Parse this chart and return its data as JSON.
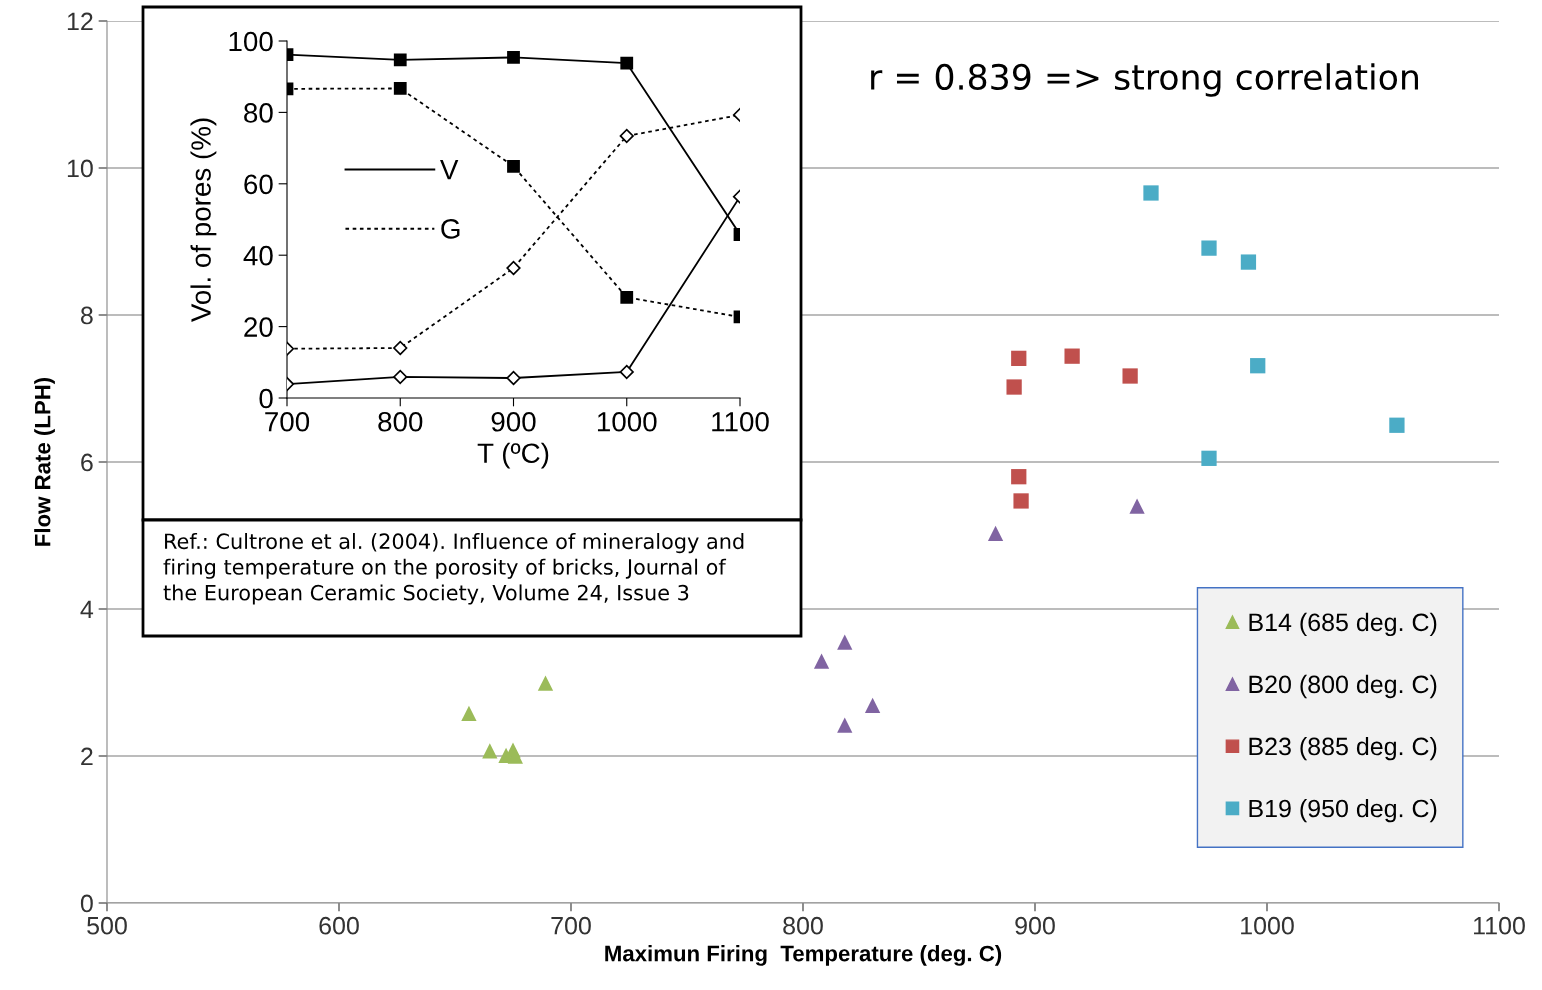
{
  "chart_data": [
    {
      "type": "scatter",
      "xlabel": "Maximun Firing  Temperature (deg. C)",
      "ylabel": "Flow Rate (LPH)",
      "xlim": [
        500,
        1100
      ],
      "xticks": [
        500,
        600,
        700,
        800,
        900,
        1000,
        1100
      ],
      "ylim": [
        0,
        12
      ],
      "yticks": [
        0,
        2,
        4,
        6,
        8,
        10,
        12
      ],
      "grid": "y",
      "legend": "bottom right",
      "annotations": [
        "r = 0.839 => strong correlation"
      ],
      "series": [
        {
          "name": "B14 (685 deg. C)",
          "color": "#9bbb59",
          "marker": "triangle",
          "x": [
            656,
            665,
            672,
            675,
            676,
            689
          ],
          "values": [
            2.58,
            2.07,
            2.01,
            2.08,
            2.0,
            2.99
          ]
        },
        {
          "name": "B20 (800 deg. C)",
          "color": "#8064a2",
          "marker": "triangle",
          "x": [
            808,
            818,
            818,
            830,
            883,
            944
          ],
          "values": [
            3.29,
            3.55,
            2.42,
            2.69,
            5.03,
            5.4
          ]
        },
        {
          "name": "B23 (885 deg. C)",
          "color": "#c0504d",
          "marker": "square",
          "x": [
            893,
            891,
            916,
            941,
            893,
            894
          ],
          "values": [
            7.41,
            7.02,
            7.44,
            7.17,
            5.8,
            5.47
          ]
        },
        {
          "name": "B19 (950 deg. C)",
          "color": "#4bacc6",
          "marker": "square",
          "x": [
            950,
            975,
            992,
            996,
            975,
            1056
          ],
          "values": [
            9.66,
            8.91,
            8.72,
            7.31,
            6.05,
            6.5
          ]
        }
      ]
    },
    {
      "type": "line",
      "xlabel": "T (ºC)",
      "ylabel": "Vol. of pores (%)",
      "x": [
        700,
        800,
        900,
        1000,
        1100
      ],
      "xlim": [
        700,
        1100
      ],
      "xticks": [
        700,
        800,
        900,
        1000,
        1100
      ],
      "ylim": [
        0,
        100
      ],
      "yticks": [
        0,
        20,
        40,
        60,
        80,
        100
      ],
      "legend": "left",
      "annotations": [
        "Ref.: Cultrone et al. (2004). Influence of mineralogy and\nfiring temperature on the porosity of bricks, Journal of\nthe European Ceramic Society, Volume 24, Issue 3"
      ],
      "series": [
        {
          "name": "V",
          "color": "#000000",
          "marker": "square",
          "line_style": "solid",
          "values": [
            96.2,
            94.7,
            95.4,
            93.8,
            45.8
          ]
        },
        {
          "color": "#000000",
          "marker": "diamond",
          "line_style": "solid",
          "values": [
            3.9,
            5.9,
            5.6,
            7.3,
            56.4
          ]
        },
        {
          "name": "G",
          "color": "#000000",
          "marker": "square",
          "line_style": "dotted",
          "values": [
            86.6,
            86.7,
            64.9,
            28.2,
            22.7
          ]
        },
        {
          "color": "#000000",
          "marker": "diamond",
          "line_style": "dotted",
          "values": [
            13.8,
            14.0,
            36.4,
            73.4,
            79.3
          ]
        }
      ]
    }
  ]
}
